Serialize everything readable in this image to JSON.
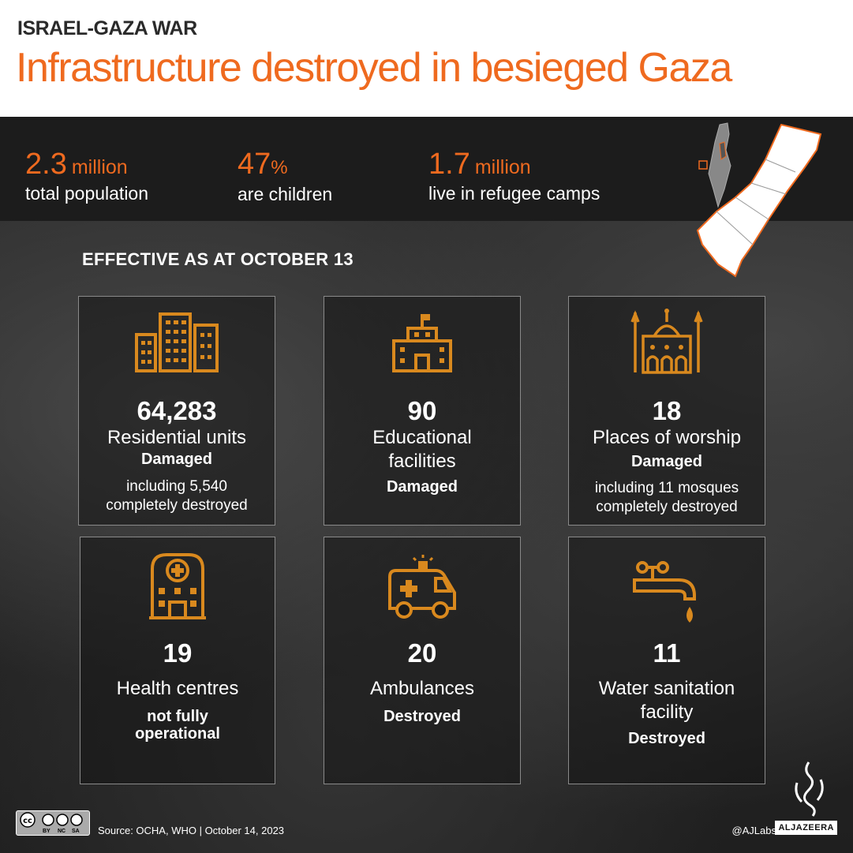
{
  "header": {
    "kicker": "ISRAEL-GAZA WAR",
    "title": "Infrastructure destroyed in besieged Gaza"
  },
  "stats": [
    {
      "value": "2.3",
      "unit": "million",
      "label": "total population"
    },
    {
      "value": "47",
      "unit": "%",
      "label": "are children"
    },
    {
      "value": "1.7",
      "unit": "million",
      "label": "live in refugee camps"
    }
  ],
  "effective_label": "EFFECTIVE AS AT OCTOBER 13",
  "cards": [
    {
      "icon": "residential-buildings-icon",
      "number": "64,283",
      "desc": "Residential units",
      "status": "Damaged",
      "extra_line1": "including 5,540",
      "extra_line2": "completely destroyed"
    },
    {
      "icon": "school-icon",
      "number": "90",
      "desc_line1": "Educational",
      "desc_line2": "facilities",
      "status": "Damaged"
    },
    {
      "icon": "mosque-icon",
      "number": "18",
      "desc": "Places of worship",
      "status": "Damaged",
      "extra_line1": "including 11 mosques",
      "extra_line2": "completely destroyed"
    },
    {
      "icon": "hospital-icon",
      "number": "19",
      "desc": "Health centres",
      "status_line1": "not fully",
      "status_line2": "operational"
    },
    {
      "icon": "ambulance-icon",
      "number": "20",
      "desc": "Ambulances",
      "status": "Destroyed"
    },
    {
      "icon": "water-tap-icon",
      "number": "11",
      "desc_line1": "Water sanitation",
      "desc_line2": "facility",
      "status": "Destroyed"
    }
  ],
  "footer": {
    "source": "Source: OCHA, WHO  |  October 14, 2023",
    "handle": "@AJLabs",
    "brand": "ALJAZEERA",
    "license": [
      "BY",
      "NC",
      "SA"
    ]
  },
  "colors": {
    "accent": "#ef6a1f",
    "icon": "#d9891e",
    "band": "#1c1c1c"
  }
}
